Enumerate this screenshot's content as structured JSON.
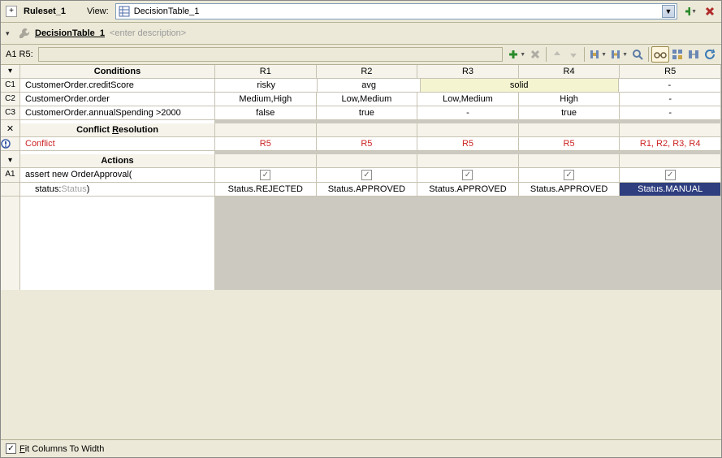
{
  "top": {
    "ruleset": "Ruleset_1",
    "view_label": "View:",
    "view_value": "DecisionTable_1",
    "add_icon": "+",
    "delete_icon": "×"
  },
  "second": {
    "name": "DecisionTable_1",
    "desc": "<enter description>"
  },
  "formula": {
    "cellref": "A1 R5:",
    "value": ""
  },
  "columns": [
    "R1",
    "R2",
    "R3",
    "R4",
    "R5"
  ],
  "conditions": {
    "title": "Conditions",
    "rows": [
      {
        "id": "C1",
        "label": "CustomerOrder.creditScore",
        "cells": [
          "risky",
          "avg",
          "solid",
          "solid",
          "-"
        ],
        "merge_r3r4": true
      },
      {
        "id": "C2",
        "label": "CustomerOrder.order",
        "cells": [
          "Medium,High",
          "Low,Medium",
          "Low,Medium",
          "High",
          "-"
        ]
      },
      {
        "id": "C3",
        "label": "CustomerOrder.annualSpending >2000",
        "cells": [
          "false",
          "true",
          "-",
          "true",
          "-"
        ]
      }
    ]
  },
  "conflict": {
    "title": "Conflict Resolution",
    "row": {
      "id": "!",
      "label": "Conflict",
      "cells": [
        "R5",
        "R5",
        "R5",
        "R5",
        "R1, R2, R3, R4"
      ]
    }
  },
  "actions": {
    "title": "Actions",
    "row": {
      "id": "A1",
      "label_main": "assert new OrderApproval(",
      "label_sub_prefix": "status:",
      "label_sub_muted": "Status",
      "label_sub_suffix": ")",
      "checks": [
        true,
        true,
        true,
        true,
        true
      ],
      "values": [
        "Status.REJECTED",
        "Status.APPROVED",
        "Status.APPROVED",
        "Status.APPROVED",
        "Status.MANUAL"
      ],
      "selected_col": 4
    }
  },
  "bottom": {
    "fit_checked": true,
    "fit_label_pre": "",
    "fit_label_u": "F",
    "fit_label_post": "it Columns To Width"
  },
  "colors": {
    "panel": "#ece9d8",
    "gridline": "#c7c3b3",
    "highlight": "#f4f4d0",
    "selected": "#2e3e7f",
    "conflict": "#c22"
  }
}
